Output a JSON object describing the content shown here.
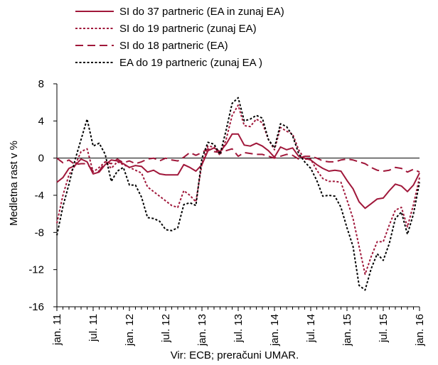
{
  "chart_data": {
    "type": "line",
    "title": "",
    "xlabel": "",
    "ylabel": "Medletna rast v %",
    "ylim": [
      -16,
      8
    ],
    "yticks": [
      -16,
      -12,
      -8,
      -4,
      0,
      4,
      8
    ],
    "xlim": [
      "2011-01",
      "2016-01"
    ],
    "x_tick_labels": [
      "jan. 11",
      "jul. 11",
      "jan. 12",
      "jul. 12",
      "jan. 13",
      "jul. 13",
      "jan. 14",
      "jul. 14",
      "jan. 15",
      "jul. 15",
      "jan. 16"
    ],
    "legend_position": "top",
    "grid": false,
    "source": "Vir: ECB; preračuni UMAR.",
    "x": [
      "2011-01",
      "2011-02",
      "2011-03",
      "2011-04",
      "2011-05",
      "2011-06",
      "2011-07",
      "2011-08",
      "2011-09",
      "2011-10",
      "2011-11",
      "2011-12",
      "2012-01",
      "2012-02",
      "2012-03",
      "2012-04",
      "2012-05",
      "2012-06",
      "2012-07",
      "2012-08",
      "2012-09",
      "2012-10",
      "2012-11",
      "2012-12",
      "2013-01",
      "2013-02",
      "2013-03",
      "2013-04",
      "2013-05",
      "2013-06",
      "2013-07",
      "2013-08",
      "2013-09",
      "2013-10",
      "2013-11",
      "2013-12",
      "2014-01",
      "2014-02",
      "2014-03",
      "2014-04",
      "2014-05",
      "2014-06",
      "2014-07",
      "2014-08",
      "2014-09",
      "2014-10",
      "2014-11",
      "2014-12",
      "2015-01",
      "2015-02",
      "2015-03",
      "2015-04",
      "2015-05",
      "2015-06",
      "2015-07",
      "2015-08",
      "2015-09",
      "2015-10",
      "2015-11",
      "2015-12",
      "2016-01"
    ],
    "series": [
      {
        "name": "SI do 37 partneric (EA in zunaj EA)",
        "color": "#a0173a",
        "dash": "solid",
        "values": [
          -2.6,
          -2.1,
          -1.1,
          -0.8,
          -0.1,
          -0.4,
          -1.7,
          -1.5,
          -0.7,
          -0.2,
          -0.3,
          -0.6,
          -1.0,
          -0.8,
          -0.9,
          -1.5,
          -1.3,
          -1.7,
          -1.8,
          -1.8,
          -1.8,
          -0.7,
          -1.0,
          -1.4,
          -0.7,
          0.8,
          1.1,
          0.7,
          1.5,
          2.6,
          2.6,
          1.4,
          1.3,
          1.6,
          1.3,
          0.8,
          0.1,
          1.2,
          0.9,
          1.1,
          0.2,
          0.0,
          -0.2,
          -0.7,
          -1.1,
          -1.4,
          -1.3,
          -1.4,
          -2.4,
          -3.3,
          -4.7,
          -5.4,
          -4.9,
          -4.4,
          -4.3,
          -3.5,
          -2.8,
          -3.0,
          -3.6,
          -2.9,
          -1.6
        ]
      },
      {
        "name": "SI do 19 partneric (zunaj EA)",
        "color": "#a0173a",
        "dash": "dot",
        "values": [
          -7.0,
          -4.0,
          -1.8,
          -0.8,
          0.7,
          1.0,
          -1.5,
          -1.0,
          -0.4,
          -1.1,
          -0.4,
          -0.7,
          -1.0,
          -1.3,
          -1.6,
          -3.1,
          -3.6,
          -4.1,
          -4.6,
          -5.1,
          -5.3,
          -3.5,
          -4.0,
          -4.7,
          -0.6,
          1.3,
          1.2,
          0.3,
          2.0,
          4.6,
          5.7,
          3.5,
          3.4,
          4.2,
          3.8,
          2.0,
          0.9,
          3.3,
          2.9,
          2.6,
          0.9,
          -0.1,
          -0.1,
          -1.3,
          -2.2,
          -2.5,
          -2.5,
          -2.6,
          -4.5,
          -6.5,
          -9.5,
          -12.5,
          -10.6,
          -9.0,
          -9.0,
          -7.2,
          -5.6,
          -5.3,
          -7.4,
          -5.0,
          -2.1
        ]
      },
      {
        "name": "SI do 18 partneric (EA)",
        "color": "#a0173a",
        "dash": "dash",
        "values": [
          0.0,
          -0.5,
          -0.2,
          -0.7,
          -0.6,
          -0.6,
          -1.4,
          -1.4,
          -0.4,
          -0.6,
          -0.1,
          -0.5,
          -0.3,
          -0.6,
          -0.4,
          -0.1,
          0.0,
          -0.3,
          0.0,
          -0.2,
          -0.3,
          0.1,
          0.6,
          0.3,
          0.6,
          1.0,
          0.7,
          0.6,
          0.8,
          1.0,
          0.2,
          0.6,
          0.5,
          0.4,
          0.4,
          0.2,
          0.0,
          0.2,
          0.4,
          0.3,
          -0.1,
          0.2,
          0.2,
          0.0,
          -0.3,
          -0.4,
          -0.4,
          -0.2,
          -0.1,
          -0.2,
          -0.4,
          -0.6,
          -1.0,
          -1.3,
          -1.4,
          -1.3,
          -1.0,
          -1.1,
          -1.5,
          -1.2,
          -1.5
        ]
      },
      {
        "name": "EA do 19 partneric (zunaj EA )",
        "color": "#000000",
        "dash": "dot",
        "values": [
          -8.3,
          -5.2,
          -2.8,
          -0.2,
          2.0,
          4.2,
          1.3,
          1.6,
          0.4,
          -2.5,
          -1.4,
          -1.0,
          -2.9,
          -2.9,
          -4.2,
          -6.4,
          -6.5,
          -6.8,
          -7.7,
          -7.8,
          -7.5,
          -5.0,
          -4.8,
          -5.1,
          0.0,
          1.7,
          1.5,
          0.4,
          3.0,
          5.9,
          6.5,
          4.0,
          4.2,
          4.6,
          4.3,
          2.0,
          1.1,
          3.7,
          3.4,
          2.4,
          0.5,
          -0.4,
          -1.1,
          -2.4,
          -4.1,
          -4.0,
          -4.1,
          -5.3,
          -7.5,
          -9.5,
          -13.7,
          -14.2,
          -11.9,
          -10.3,
          -11.0,
          -9.2,
          -6.5,
          -5.8,
          -8.2,
          -6.0,
          -2.6
        ]
      }
    ]
  }
}
